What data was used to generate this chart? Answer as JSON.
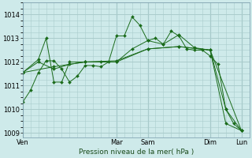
{
  "bg_color": "#ceeaea",
  "grid_color": "#aacccc",
  "line_color": "#1a6b1a",
  "title": "Pression niveau de la mer( hPa )",
  "ylim": [
    1008.8,
    1014.5
  ],
  "yticks": [
    1009,
    1010,
    1011,
    1012,
    1013,
    1014
  ],
  "xlim": [
    0,
    87
  ],
  "series": [
    {
      "x": [
        0,
        3,
        6,
        9,
        12,
        15,
        18,
        21,
        24,
        27,
        30,
        33,
        36,
        39,
        42,
        45,
        48,
        51,
        54,
        57,
        60,
        63,
        66,
        69,
        72,
        75,
        78,
        81,
        84
      ],
      "y": [
        1010.3,
        1010.8,
        1011.55,
        1012.05,
        1012.05,
        1011.7,
        1011.15,
        1011.4,
        1011.85,
        1011.85,
        1011.8,
        1012.0,
        1013.1,
        1013.1,
        1013.9,
        1013.55,
        1012.9,
        1013.0,
        1012.75,
        1013.3,
        1013.1,
        1012.55,
        1012.5,
        1012.5,
        1012.25,
        1011.9,
        1010.0,
        1009.4,
        1009.1
      ]
    },
    {
      "x": [
        0,
        6,
        12,
        18,
        24,
        30,
        36,
        42,
        48,
        54,
        60,
        66,
        72,
        78,
        84
      ],
      "y": [
        1011.55,
        1012.0,
        1011.7,
        1011.9,
        1012.0,
        1012.0,
        1012.0,
        1012.55,
        1012.9,
        1012.75,
        1013.15,
        1012.6,
        1012.5,
        1010.0,
        1009.1
      ]
    },
    {
      "x": [
        0,
        12,
        24,
        36,
        48,
        60,
        72,
        84
      ],
      "y": [
        1011.55,
        1011.8,
        1012.0,
        1012.05,
        1012.55,
        1012.65,
        1012.5,
        1009.1
      ]
    },
    {
      "x": [
        0,
        6,
        9,
        12,
        15,
        18,
        24,
        36,
        48,
        60,
        72,
        78,
        84
      ],
      "y": [
        1011.55,
        1012.1,
        1013.0,
        1011.15,
        1011.15,
        1012.0,
        1012.0,
        1012.0,
        1012.55,
        1012.65,
        1012.5,
        1009.4,
        1009.1
      ]
    }
  ],
  "xtick_major_pos": [
    0,
    36,
    48,
    72,
    84
  ],
  "xtick_major_labels": [
    "Ven",
    "Mar",
    "Sam",
    "Dim",
    "Lun"
  ],
  "xvertlines": [
    0,
    36,
    48,
    72,
    84
  ]
}
